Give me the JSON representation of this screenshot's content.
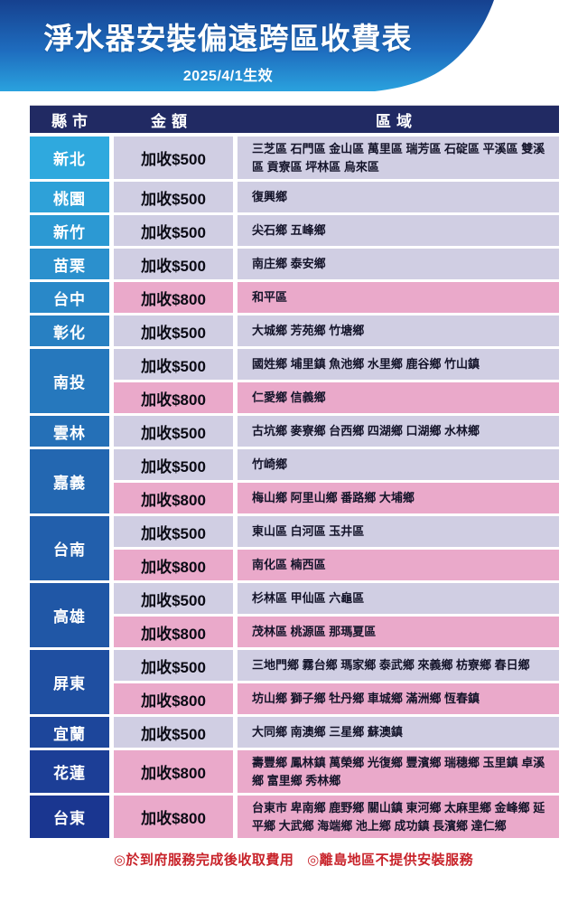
{
  "header": {
    "title": "淨水器安裝偏遠跨區收費表",
    "effective_date": "2025/4/1生效"
  },
  "table": {
    "columns": [
      "縣市",
      "金額",
      "區域"
    ],
    "colors": {
      "hero_top": "#16418f",
      "hero_mid": "#1e6cbe",
      "hero_bottom": "#2aa2de",
      "thead_bg": "#212a63",
      "county_gradient_top": "#2fa9de",
      "county_gradient_bottom": "#1a3690",
      "fee500_bg": "#d0cee3",
      "fee800_bg": "#eaa9ca",
      "note_red": "#c8232a"
    },
    "fee_labels": {
      "500": "加收$500",
      "800": "加收$800"
    },
    "counties": [
      {
        "name": "新北",
        "rows": [
          {
            "tier": "500",
            "fee": "加收$500",
            "areas": "三芝區 石門區 金山區 萬里區 瑞芳區 石碇區 平溪區 雙溪區 貢寮區 坪林區 烏來區"
          }
        ]
      },
      {
        "name": "桃園",
        "rows": [
          {
            "tier": "500",
            "fee": "加收$500",
            "areas": "復興鄉"
          }
        ]
      },
      {
        "name": "新竹",
        "rows": [
          {
            "tier": "500",
            "fee": "加收$500",
            "areas": "尖石鄉 五峰鄉"
          }
        ]
      },
      {
        "name": "苗栗",
        "rows": [
          {
            "tier": "500",
            "fee": "加收$500",
            "areas": "南庄鄉 泰安鄉"
          }
        ]
      },
      {
        "name": "台中",
        "rows": [
          {
            "tier": "800",
            "fee": "加收$800",
            "areas": "和平區"
          }
        ]
      },
      {
        "name": "彰化",
        "rows": [
          {
            "tier": "500",
            "fee": "加收$500",
            "areas": "大城鄉 芳苑鄉 竹塘鄉"
          }
        ]
      },
      {
        "name": "南投",
        "rows": [
          {
            "tier": "500",
            "fee": "加收$500",
            "areas": "國姓鄉 埔里鎮 魚池鄉 水里鄉 鹿谷鄉 竹山鎮"
          },
          {
            "tier": "800",
            "fee": "加收$800",
            "areas": "仁愛鄉 信義鄉"
          }
        ]
      },
      {
        "name": "雲林",
        "rows": [
          {
            "tier": "500",
            "fee": "加收$500",
            "areas": "古坑鄉 麥寮鄉 台西鄉 四湖鄉 口湖鄉 水林鄉"
          }
        ]
      },
      {
        "name": "嘉義",
        "rows": [
          {
            "tier": "500",
            "fee": "加收$500",
            "areas": "竹崎鄉"
          },
          {
            "tier": "800",
            "fee": "加收$800",
            "areas": "梅山鄉 阿里山鄉 番路鄉 大埔鄉"
          }
        ]
      },
      {
        "name": "台南",
        "rows": [
          {
            "tier": "500",
            "fee": "加收$500",
            "areas": "東山區 白河區 玉井區"
          },
          {
            "tier": "800",
            "fee": "加收$800",
            "areas": "南化區 楠西區"
          }
        ]
      },
      {
        "name": "高雄",
        "rows": [
          {
            "tier": "500",
            "fee": "加收$500",
            "areas": "杉林區 甲仙區 六龜區"
          },
          {
            "tier": "800",
            "fee": "加收$800",
            "areas": "茂林區 桃源區 那瑪夏區"
          }
        ]
      },
      {
        "name": "屏東",
        "rows": [
          {
            "tier": "500",
            "fee": "加收$500",
            "areas": "三地門鄉 霧台鄉 瑪家鄉 泰武鄉 來義鄉 枋寮鄉 春日鄉"
          },
          {
            "tier": "800",
            "fee": "加收$800",
            "areas": "坊山鄉 獅子鄉 牡丹鄉 車城鄉 滿洲鄉 恆春鎮"
          }
        ]
      },
      {
        "name": "宜蘭",
        "rows": [
          {
            "tier": "500",
            "fee": "加收$500",
            "areas": "大同鄉 南澳鄉 三星鄉 蘇澳鎮"
          }
        ]
      },
      {
        "name": "花蓮",
        "rows": [
          {
            "tier": "800",
            "fee": "加收$800",
            "areas": "壽豐鄉 鳳林鎮 萬榮鄉 光復鄉 豐濱鄉 瑞穗鄉 玉里鎮 卓溪鄉 富里鄉 秀林鄉"
          }
        ]
      },
      {
        "name": "台東",
        "rows": [
          {
            "tier": "800",
            "fee": "加收$800",
            "areas": "台東市 卑南鄉 鹿野鄉 關山鎮 東河鄉 太麻里鄉 金峰鄉 延平鄉 大武鄉 海端鄉 池上鄉 成功鎮 長濱鄉 達仁鄉"
          }
        ]
      }
    ]
  },
  "footer": {
    "notes": [
      "◎於到府服務完成後收取費用",
      "◎離島地區不提供安裝服務"
    ]
  }
}
